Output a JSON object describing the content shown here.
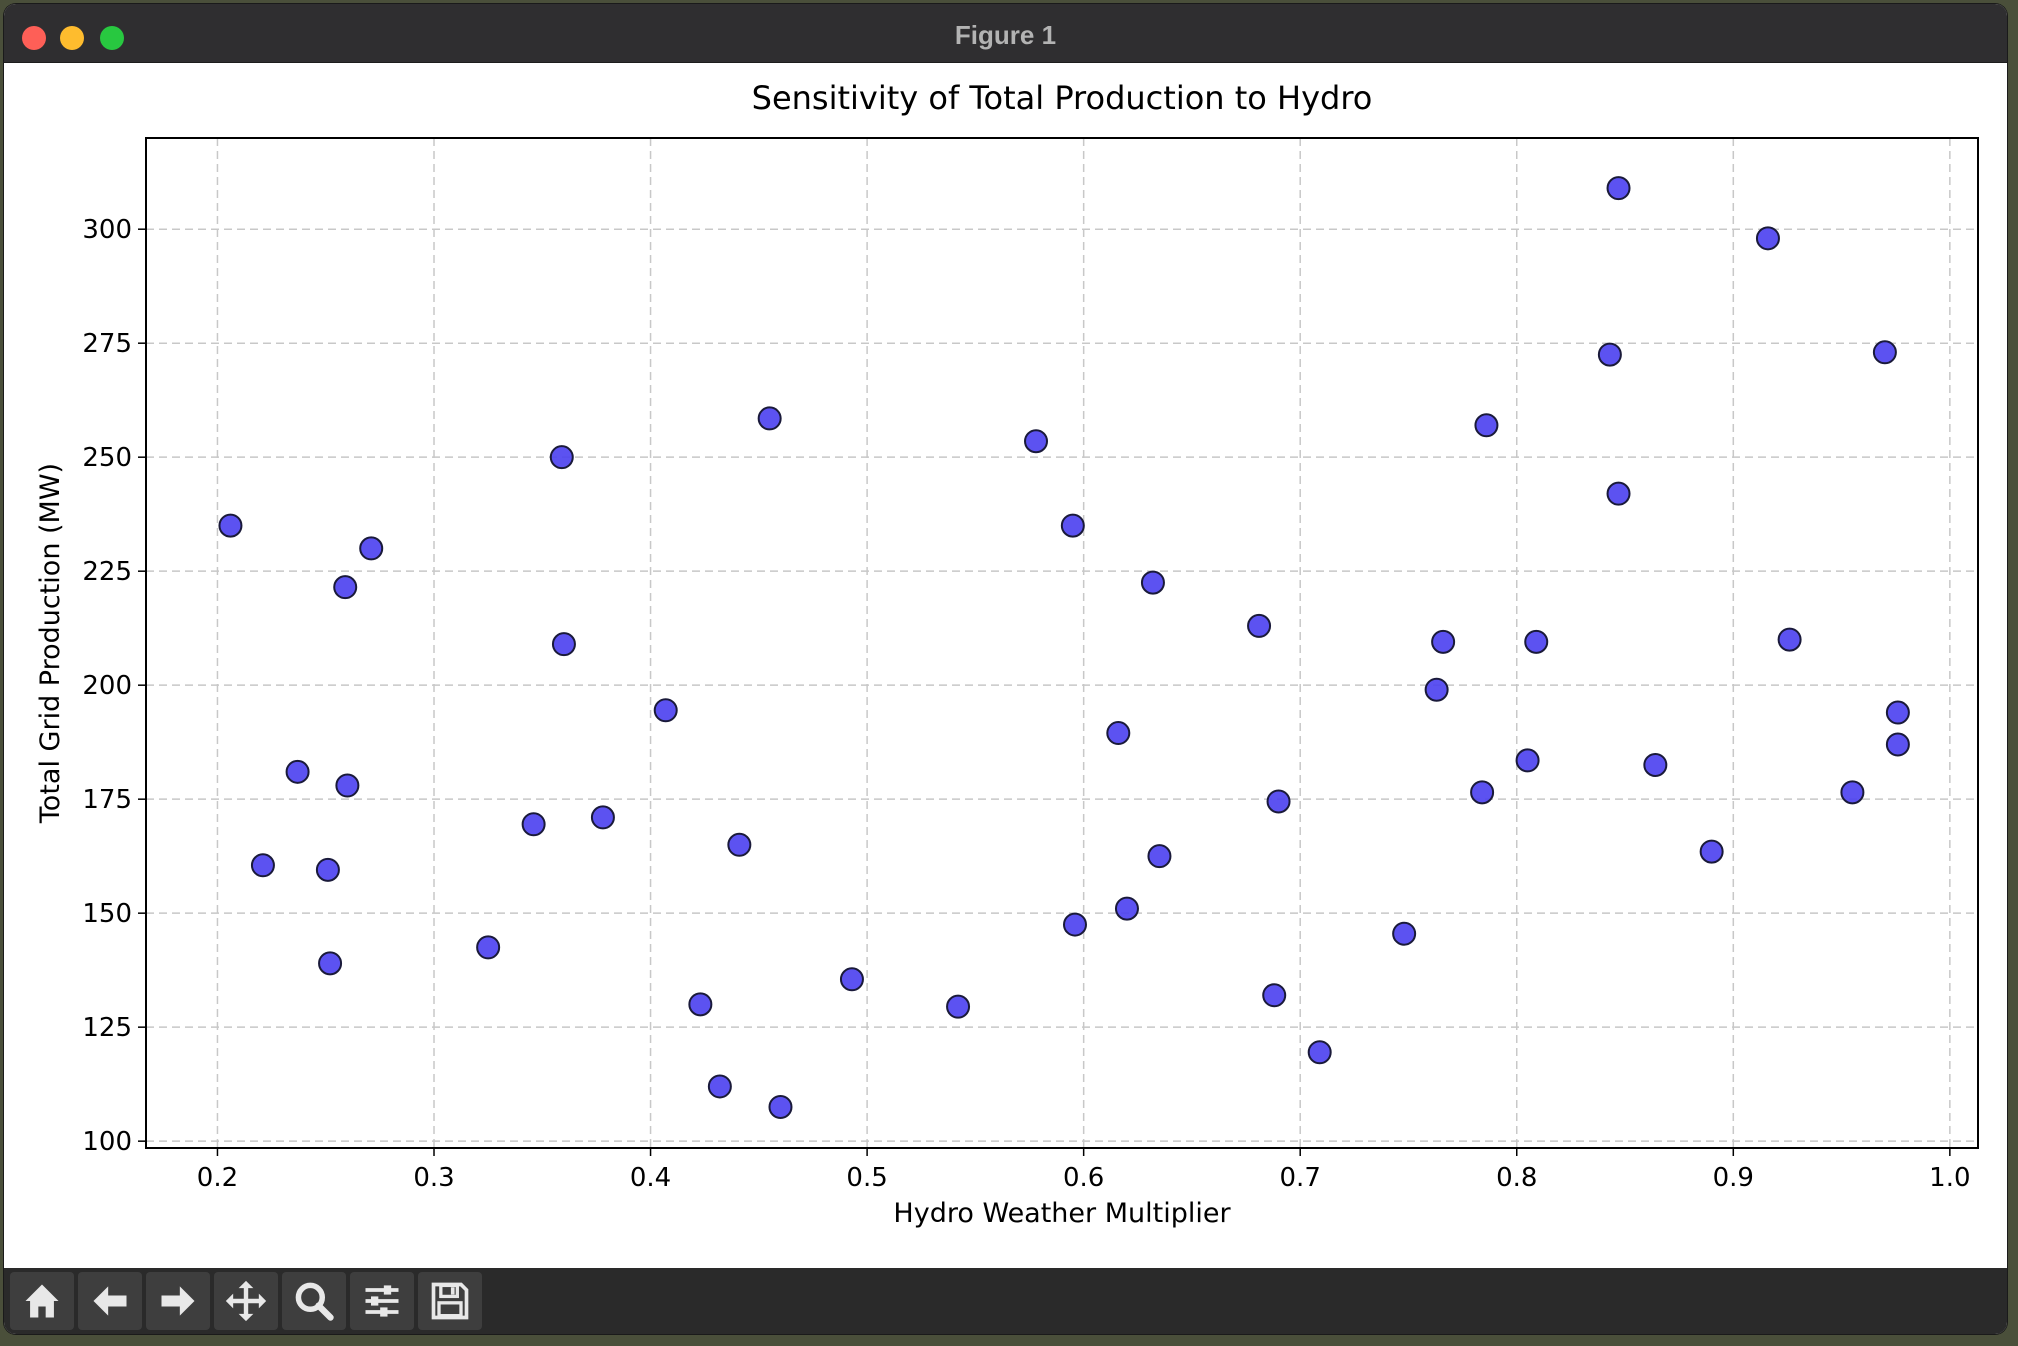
{
  "window": {
    "title": "Figure 1"
  },
  "toolbar": {
    "tools": [
      {
        "name": "home-icon"
      },
      {
        "name": "back-arrow-icon"
      },
      {
        "name": "forward-arrow-icon"
      },
      {
        "name": "pan-icon"
      },
      {
        "name": "zoom-icon"
      },
      {
        "name": "configure-subplots-icon"
      },
      {
        "name": "save-icon"
      }
    ]
  },
  "chart_data": {
    "type": "scatter",
    "title": "Sensitivity of Total Production to Hydro",
    "xlabel": "Hydro Weather Multiplier",
    "ylabel": "Total Grid Production (MW)",
    "xlim": [
      0.167,
      1.013
    ],
    "ylim": [
      98.5,
      320
    ],
    "xticks": [
      0.2,
      0.3,
      0.4,
      0.5,
      0.6,
      0.7,
      0.8,
      0.9,
      1.0
    ],
    "xtick_labels": [
      "0.2",
      "0.3",
      "0.4",
      "0.5",
      "0.6",
      "0.7",
      "0.8",
      "0.9",
      "1.0"
    ],
    "yticks": [
      100,
      125,
      150,
      175,
      200,
      225,
      250,
      275,
      300
    ],
    "ytick_labels": [
      "100",
      "125",
      "150",
      "175",
      "200",
      "225",
      "250",
      "275",
      "300"
    ],
    "grid": true,
    "marker_color": "#4a3ff0",
    "marker_edge": "#1a1a3a",
    "points": [
      [
        0.206,
        235
      ],
      [
        0.221,
        160.5
      ],
      [
        0.237,
        181
      ],
      [
        0.251,
        159.5
      ],
      [
        0.252,
        139
      ],
      [
        0.259,
        221.5
      ],
      [
        0.26,
        178
      ],
      [
        0.271,
        230
      ],
      [
        0.325,
        142.5
      ],
      [
        0.346,
        169.5
      ],
      [
        0.359,
        250
      ],
      [
        0.36,
        209
      ],
      [
        0.378,
        171
      ],
      [
        0.407,
        194.5
      ],
      [
        0.423,
        130
      ],
      [
        0.432,
        112
      ],
      [
        0.441,
        165
      ],
      [
        0.455,
        258.5
      ],
      [
        0.46,
        107.5
      ],
      [
        0.493,
        135.5
      ],
      [
        0.542,
        129.5
      ],
      [
        0.578,
        253.5
      ],
      [
        0.595,
        235
      ],
      [
        0.596,
        147.5
      ],
      [
        0.616,
        189.5
      ],
      [
        0.62,
        151
      ],
      [
        0.632,
        222.5
      ],
      [
        0.635,
        162.5
      ],
      [
        0.681,
        213
      ],
      [
        0.688,
        132
      ],
      [
        0.69,
        174.5
      ],
      [
        0.709,
        119.5
      ],
      [
        0.748,
        145.5
      ],
      [
        0.763,
        199
      ],
      [
        0.766,
        209.5
      ],
      [
        0.784,
        176.5
      ],
      [
        0.786,
        257
      ],
      [
        0.805,
        183.5
      ],
      [
        0.809,
        209.5
      ],
      [
        0.843,
        272.5
      ],
      [
        0.847,
        309
      ],
      [
        0.847,
        242
      ],
      [
        0.864,
        182.5
      ],
      [
        0.89,
        163.5
      ],
      [
        0.916,
        298
      ],
      [
        0.926,
        210
      ],
      [
        0.955,
        176.5
      ],
      [
        0.97,
        273
      ],
      [
        0.976,
        194
      ],
      [
        0.976,
        187
      ]
    ]
  }
}
